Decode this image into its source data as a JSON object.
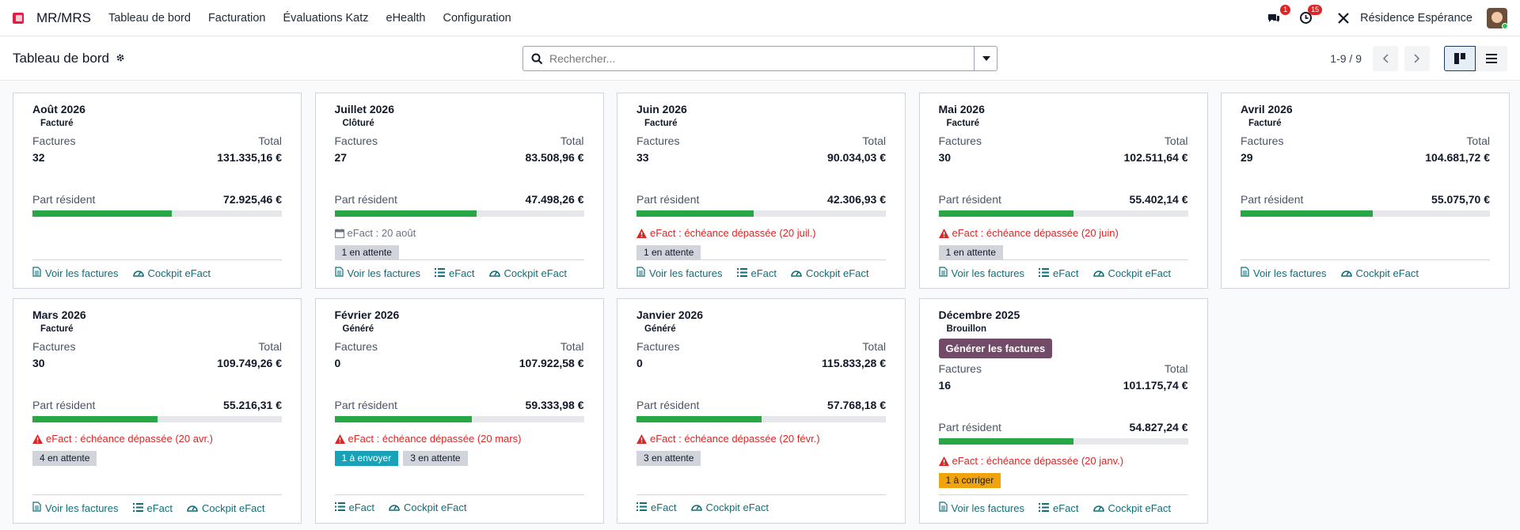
{
  "nav": {
    "app": "MR/MRS",
    "menu": [
      "Tableau de bord",
      "Facturation",
      "Évaluations Katz",
      "eHealth",
      "Configuration"
    ],
    "msg_count": "1",
    "activity_count": "15",
    "company": "Résidence Espérance"
  },
  "cp": {
    "title": "Tableau de bord",
    "search_placeholder": "Rechercher...",
    "pager": "1-9 / 9"
  },
  "labels": {
    "factures": "Factures",
    "total": "Total",
    "part": "Part résident",
    "voir": "Voir les factures",
    "efact": "eFact",
    "cockpit": "Cockpit eFact",
    "generate": "Générer les factures"
  },
  "cards": [
    {
      "title": "Août 2026",
      "status": "Facturé",
      "factures": "32",
      "total": "131.335,16 €",
      "part": "72.925,46 €",
      "pct": 0.56,
      "links": [
        "voir",
        "cockpit"
      ]
    },
    {
      "title": "Juillet 2026",
      "status": "Clôturé",
      "factures": "27",
      "total": "83.508,96 €",
      "part": "47.498,26 €",
      "pct": 0.57,
      "info": "eFact : 20 août",
      "tags": [
        {
          "t": "1 en attente",
          "c": "grey"
        }
      ],
      "links": [
        "voir",
        "efact",
        "cockpit"
      ]
    },
    {
      "title": "Juin 2026",
      "status": "Facturé",
      "factures": "33",
      "total": "90.034,03 €",
      "part": "42.306,93 €",
      "pct": 0.47,
      "warn": "eFact : échéance dépassée (20 juil.)",
      "tags": [
        {
          "t": "1 en attente",
          "c": "grey"
        }
      ],
      "links": [
        "voir",
        "efact",
        "cockpit"
      ]
    },
    {
      "title": "Mai 2026",
      "status": "Facturé",
      "factures": "30",
      "total": "102.511,64 €",
      "part": "55.402,14 €",
      "pct": 0.54,
      "warn": "eFact : échéance dépassée (20 juin)",
      "tags": [
        {
          "t": "1 en attente",
          "c": "grey"
        }
      ],
      "links": [
        "voir",
        "efact",
        "cockpit"
      ]
    },
    {
      "title": "Avril 2026",
      "status": "Facturé",
      "factures": "29",
      "total": "104.681,72 €",
      "part": "55.075,70 €",
      "pct": 0.53,
      "links": [
        "voir",
        "cockpit"
      ]
    },
    {
      "title": "Mars 2026",
      "status": "Facturé",
      "factures": "30",
      "total": "109.749,26 €",
      "part": "55.216,31 €",
      "pct": 0.5,
      "warn": "eFact : échéance dépassée (20 avr.)",
      "tags": [
        {
          "t": "4 en attente",
          "c": "grey"
        }
      ],
      "links": [
        "voir",
        "efact",
        "cockpit"
      ]
    },
    {
      "title": "Février 2026",
      "status": "Généré",
      "factures": "0",
      "total": "107.922,58 €",
      "part": "59.333,98 €",
      "pct": 0.55,
      "warn": "eFact : échéance dépassée (20 mars)",
      "tags": [
        {
          "t": "1 à envoyer",
          "c": "teal"
        },
        {
          "t": "3 en attente",
          "c": "grey"
        }
      ],
      "links": [
        "efact",
        "cockpit"
      ]
    },
    {
      "title": "Janvier 2026",
      "status": "Généré",
      "factures": "0",
      "total": "115.833,28 €",
      "part": "57.768,18 €",
      "pct": 0.5,
      "warn": "eFact : échéance dépassée (20 févr.)",
      "tags": [
        {
          "t": "3 en attente",
          "c": "grey"
        }
      ],
      "links": [
        "efact",
        "cockpit"
      ]
    },
    {
      "title": "Décembre 2025",
      "status": "Brouillon",
      "button": true,
      "factures": "16",
      "total": "101.175,74 €",
      "part": "54.827,24 €",
      "pct": 0.54,
      "warn": "eFact : échéance dépassée (20 janv.)",
      "tags": [
        {
          "t": "1 à corriger",
          "c": "orange"
        }
      ],
      "links": [
        "voir",
        "efact",
        "cockpit"
      ]
    }
  ]
}
